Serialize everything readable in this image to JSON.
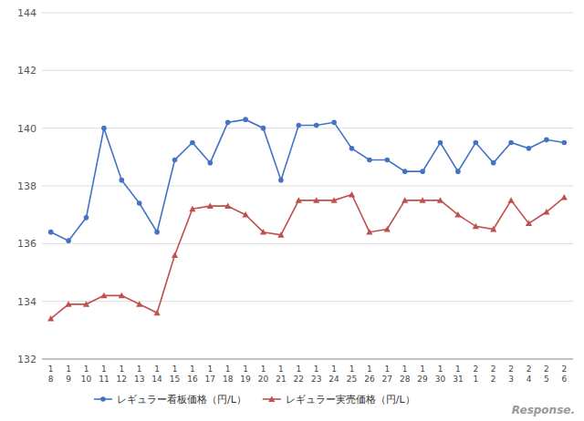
{
  "chart_data": {
    "type": "line",
    "categories": [
      "1\n8",
      "1\n9",
      "1\n10",
      "1\n11",
      "1\n12",
      "1\n13",
      "1\n14",
      "1\n15",
      "1\n16",
      "1\n17",
      "1\n18",
      "1\n19",
      "1\n20",
      "1\n21",
      "1\n22",
      "1\n23",
      "1\n24",
      "1\n25",
      "1\n26",
      "1\n27",
      "1\n28",
      "1\n29",
      "1\n30",
      "1\n31",
      "2\n1",
      "2\n2",
      "2\n3",
      "2\n4",
      "2\n5",
      "2\n6"
    ],
    "series": [
      {
        "name": "レギュラー看板価格（円/L）",
        "color": "#4472C4",
        "marker": "circle",
        "values": [
          136.4,
          136.1,
          136.9,
          140.0,
          138.2,
          137.4,
          136.4,
          138.9,
          139.5,
          138.8,
          140.2,
          140.3,
          140.0,
          138.2,
          140.1,
          140.1,
          140.2,
          139.3,
          138.9,
          138.9,
          138.5,
          138.5,
          139.5,
          138.5,
          139.5,
          138.8,
          139.5,
          139.3,
          139.6,
          139.5
        ]
      },
      {
        "name": "レギュラー実売価格（円/L）",
        "color": "#C0504D",
        "marker": "triangle",
        "values": [
          133.4,
          133.9,
          133.9,
          134.2,
          134.2,
          133.9,
          133.6,
          135.6,
          137.2,
          137.3,
          137.3,
          137.0,
          136.4,
          136.3,
          137.5,
          137.5,
          137.5,
          137.7,
          136.4,
          136.5,
          137.5,
          137.5,
          137.5,
          137.0,
          136.6,
          136.5,
          137.5,
          136.7,
          137.1,
          137.6
        ]
      }
    ],
    "ylim": [
      132,
      144
    ],
    "yticks": [
      132,
      134,
      136,
      138,
      140,
      142,
      144
    ],
    "grid": true,
    "legend": "bottom",
    "annotations": [
      "Response."
    ]
  }
}
